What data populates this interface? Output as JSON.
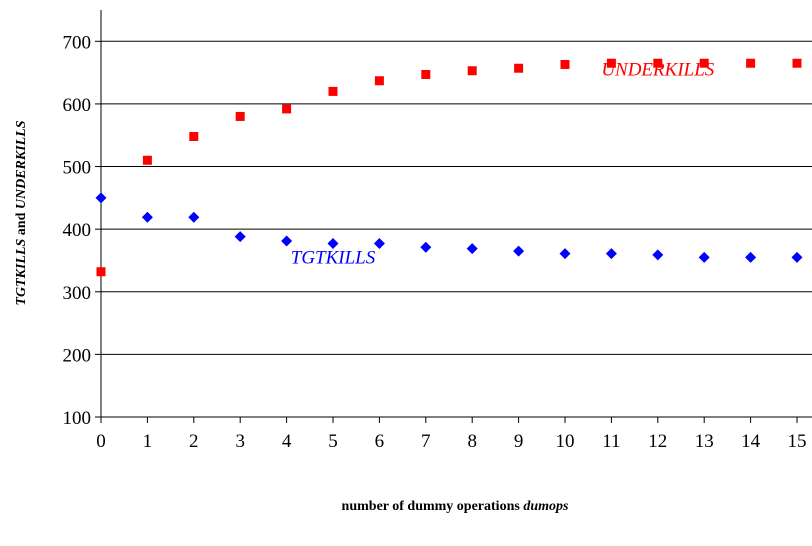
{
  "chart_data": {
    "type": "scatter",
    "x_label": [
      "number of dummy operations",
      "dumops"
    ],
    "y_label": [
      "TGTKILLS",
      "and",
      "UNDERKILLS"
    ],
    "xlim": [
      0,
      15
    ],
    "xticks": [
      0,
      1,
      2,
      3,
      4,
      5,
      6,
      7,
      8,
      9,
      10,
      11,
      12,
      13,
      14,
      15
    ],
    "ylim": [
      100,
      750
    ],
    "yticks": [
      100,
      200,
      300,
      400,
      500,
      600,
      700
    ],
    "grid": true,
    "series": [
      {
        "name": "UNDERKILLS",
        "color": "#ff0000",
        "marker": "square",
        "x": [
          0,
          1,
          2,
          3,
          4,
          5,
          6,
          7,
          8,
          9,
          10,
          11,
          12,
          13,
          14,
          15
        ],
        "values": [
          332,
          510,
          548,
          580,
          592,
          620,
          637,
          647,
          653,
          657,
          663,
          665,
          665,
          665,
          665,
          665
        ]
      },
      {
        "name": "TGTKILLS",
        "color": "#0000ff",
        "marker": "diamond",
        "x": [
          0,
          1,
          2,
          3,
          4,
          5,
          6,
          7,
          8,
          9,
          10,
          11,
          12,
          13,
          14,
          15
        ],
        "values": [
          450,
          419,
          419,
          388,
          381,
          377,
          377,
          371,
          369,
          365,
          361,
          361,
          359,
          355,
          355,
          355
        ]
      }
    ],
    "annotations": [
      {
        "text": "UNDERKILLS",
        "x": 12,
        "y": 645,
        "color": "#ff0000"
      },
      {
        "text": "TGTKILLS",
        "x": 5,
        "y": 345,
        "color": "#0000ff"
      }
    ]
  }
}
